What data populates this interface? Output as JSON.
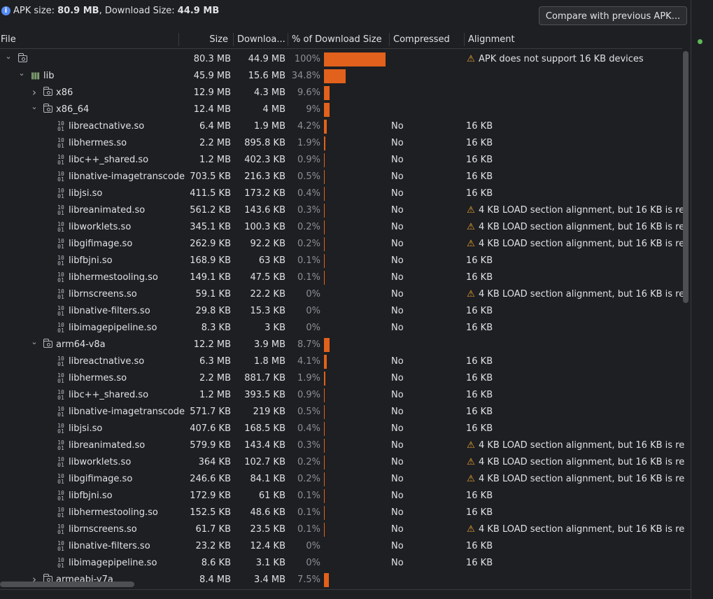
{
  "summary": {
    "apk_label": "APK size: ",
    "apk_size": "80.9 MB",
    "sep": ", Download Size: ",
    "download_size": "44.9 MB"
  },
  "compare_button": "Compare with previous APK...",
  "columns": {
    "file": "File",
    "size": "Size",
    "download": "Downloa...",
    "pct": "% of Download Size",
    "compressed": "Compressed",
    "alignment": "Alignment"
  },
  "warning_text": "4 KB LOAD section alignment, but 16 KB is re",
  "rows": [
    {
      "type": "root",
      "name": "",
      "size": "80.3 MB",
      "dl": "44.9 MB",
      "pct": "100%",
      "pct_value": 100,
      "comp": "",
      "align": "APK does not support 16 KB devices",
      "warn": true
    },
    {
      "type": "lib",
      "name": "lib",
      "size": "45.9 MB",
      "dl": "15.6 MB",
      "pct": "34.8%",
      "pct_value": 34.8,
      "comp": "",
      "align": "",
      "warn": false
    },
    {
      "type": "folder",
      "collapsed": true,
      "name": "x86",
      "size": "12.9 MB",
      "dl": "4.3 MB",
      "pct": "9.6%",
      "pct_value": 9.6,
      "comp": "",
      "align": "",
      "warn": false
    },
    {
      "type": "folder",
      "collapsed": false,
      "name": "x86_64",
      "size": "12.4 MB",
      "dl": "4 MB",
      "pct": "9%",
      "pct_value": 9,
      "comp": "",
      "align": "",
      "warn": false
    },
    {
      "type": "so",
      "name": "libreactnative.so",
      "size": "6.4 MB",
      "dl": "1.9 MB",
      "pct": "4.2%",
      "pct_value": 4.2,
      "comp": "No",
      "align": "16 KB",
      "warn": false
    },
    {
      "type": "so",
      "name": "libhermes.so",
      "size": "2.2 MB",
      "dl": "895.8 KB",
      "pct": "1.9%",
      "pct_value": 1.9,
      "comp": "No",
      "align": "16 KB",
      "warn": false
    },
    {
      "type": "so",
      "name": "libc++_shared.so",
      "size": "1.2 MB",
      "dl": "402.3 KB",
      "pct": "0.9%",
      "pct_value": 0.9,
      "comp": "No",
      "align": "16 KB",
      "warn": false
    },
    {
      "type": "so",
      "name": "libnative-imagetranscode",
      "size": "703.5 KB",
      "dl": "216.3 KB",
      "pct": "0.5%",
      "pct_value": 0.5,
      "comp": "No",
      "align": "16 KB",
      "warn": false
    },
    {
      "type": "so",
      "name": "libjsi.so",
      "size": "411.5 KB",
      "dl": "173.2 KB",
      "pct": "0.4%",
      "pct_value": 0.4,
      "comp": "No",
      "align": "16 KB",
      "warn": false
    },
    {
      "type": "so",
      "name": "libreanimated.so",
      "size": "561.2 KB",
      "dl": "143.6 KB",
      "pct": "0.3%",
      "pct_value": 0.3,
      "comp": "No",
      "align": "4 KB LOAD section alignment, but 16 KB is re",
      "warn": true
    },
    {
      "type": "so",
      "name": "libworklets.so",
      "size": "345.1 KB",
      "dl": "100.3 KB",
      "pct": "0.2%",
      "pct_value": 0.2,
      "comp": "No",
      "align": "4 KB LOAD section alignment, but 16 KB is re",
      "warn": true
    },
    {
      "type": "so",
      "name": "libgifimage.so",
      "size": "262.9 KB",
      "dl": "92.2 KB",
      "pct": "0.2%",
      "pct_value": 0.2,
      "comp": "No",
      "align": "4 KB LOAD section alignment, but 16 KB is re",
      "warn": true
    },
    {
      "type": "so",
      "name": "libfbjni.so",
      "size": "168.9 KB",
      "dl": "63 KB",
      "pct": "0.1%",
      "pct_value": 0.1,
      "comp": "No",
      "align": "16 KB",
      "warn": false
    },
    {
      "type": "so",
      "name": "libhermestooling.so",
      "size": "149.1 KB",
      "dl": "47.5 KB",
      "pct": "0.1%",
      "pct_value": 0.1,
      "comp": "No",
      "align": "16 KB",
      "warn": false
    },
    {
      "type": "so",
      "name": "librnscreens.so",
      "size": "59.1 KB",
      "dl": "22.2 KB",
      "pct": "0%",
      "pct_value": 0,
      "comp": "No",
      "align": "4 KB LOAD section alignment, but 16 KB is re",
      "warn": true
    },
    {
      "type": "so",
      "name": "libnative-filters.so",
      "size": "29.8 KB",
      "dl": "15.3 KB",
      "pct": "0%",
      "pct_value": 0,
      "comp": "No",
      "align": "16 KB",
      "warn": false
    },
    {
      "type": "so",
      "name": "libimagepipeline.so",
      "size": "8.3 KB",
      "dl": "3 KB",
      "pct": "0%",
      "pct_value": 0,
      "comp": "No",
      "align": "16 KB",
      "warn": false
    },
    {
      "type": "folder",
      "collapsed": false,
      "name": "arm64-v8a",
      "size": "12.2 MB",
      "dl": "3.9 MB",
      "pct": "8.7%",
      "pct_value": 8.7,
      "comp": "",
      "align": "",
      "warn": false
    },
    {
      "type": "so",
      "name": "libreactnative.so",
      "size": "6.3 MB",
      "dl": "1.8 MB",
      "pct": "4.1%",
      "pct_value": 4.1,
      "comp": "No",
      "align": "16 KB",
      "warn": false
    },
    {
      "type": "so",
      "name": "libhermes.so",
      "size": "2.2 MB",
      "dl": "881.7 KB",
      "pct": "1.9%",
      "pct_value": 1.9,
      "comp": "No",
      "align": "16 KB",
      "warn": false
    },
    {
      "type": "so",
      "name": "libc++_shared.so",
      "size": "1.2 MB",
      "dl": "393.5 KB",
      "pct": "0.9%",
      "pct_value": 0.9,
      "comp": "No",
      "align": "16 KB",
      "warn": false
    },
    {
      "type": "so",
      "name": "libnative-imagetranscode",
      "size": "571.7 KB",
      "dl": "219 KB",
      "pct": "0.5%",
      "pct_value": 0.5,
      "comp": "No",
      "align": "16 KB",
      "warn": false
    },
    {
      "type": "so",
      "name": "libjsi.so",
      "size": "407.6 KB",
      "dl": "168.5 KB",
      "pct": "0.4%",
      "pct_value": 0.4,
      "comp": "No",
      "align": "16 KB",
      "warn": false
    },
    {
      "type": "so",
      "name": "libreanimated.so",
      "size": "579.9 KB",
      "dl": "143.4 KB",
      "pct": "0.3%",
      "pct_value": 0.3,
      "comp": "No",
      "align": "4 KB LOAD section alignment, but 16 KB is re",
      "warn": true
    },
    {
      "type": "so",
      "name": "libworklets.so",
      "size": "364 KB",
      "dl": "102.7 KB",
      "pct": "0.2%",
      "pct_value": 0.2,
      "comp": "No",
      "align": "4 KB LOAD section alignment, but 16 KB is re",
      "warn": true
    },
    {
      "type": "so",
      "name": "libgifimage.so",
      "size": "246.6 KB",
      "dl": "84.1 KB",
      "pct": "0.2%",
      "pct_value": 0.2,
      "comp": "No",
      "align": "4 KB LOAD section alignment, but 16 KB is re",
      "warn": true
    },
    {
      "type": "so",
      "name": "libfbjni.so",
      "size": "172.9 KB",
      "dl": "61 KB",
      "pct": "0.1%",
      "pct_value": 0.1,
      "comp": "No",
      "align": "16 KB",
      "warn": false
    },
    {
      "type": "so",
      "name": "libhermestooling.so",
      "size": "152.5 KB",
      "dl": "48.6 KB",
      "pct": "0.1%",
      "pct_value": 0.1,
      "comp": "No",
      "align": "16 KB",
      "warn": false
    },
    {
      "type": "so",
      "name": "librnscreens.so",
      "size": "61.7 KB",
      "dl": "23.5 KB",
      "pct": "0.1%",
      "pct_value": 0.1,
      "comp": "No",
      "align": "4 KB LOAD section alignment, but 16 KB is re",
      "warn": true
    },
    {
      "type": "so",
      "name": "libnative-filters.so",
      "size": "23.2 KB",
      "dl": "12.4 KB",
      "pct": "0%",
      "pct_value": 0,
      "comp": "No",
      "align": "16 KB",
      "warn": false
    },
    {
      "type": "so",
      "name": "libimagepipeline.so",
      "size": "8.6 KB",
      "dl": "3.1 KB",
      "pct": "0%",
      "pct_value": 0,
      "comp": "No",
      "align": "16 KB",
      "warn": false
    },
    {
      "type": "folder",
      "collapsed": true,
      "name": "armeabi-v7a",
      "size": "8.4 MB",
      "dl": "3.4 MB",
      "pct": "7.5%",
      "pct_value": 7.5,
      "comp": "",
      "align": "",
      "warn": false
    }
  ],
  "colors": {
    "bar": "#e2611c",
    "warning": "#f0a732",
    "info": "#548af7",
    "status_ok": "#5fb85a"
  },
  "icons": {
    "info": "info-icon",
    "warning": "warning-icon",
    "folder": "folder-icon",
    "library": "library-icon",
    "native-lib": "so-file-icon",
    "expand": "chevron-right-icon",
    "collapse": "chevron-down-icon"
  }
}
